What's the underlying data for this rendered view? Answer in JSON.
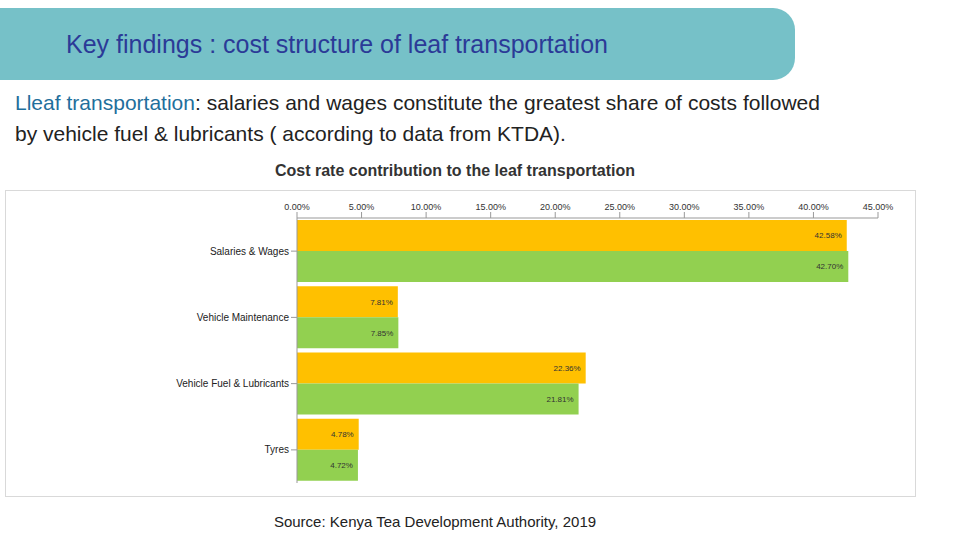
{
  "slide": {
    "title": "Key findings : cost structure of leaf transportation",
    "text": "Lleaf transportation: salaries and wages constitute the greatest share of costs followed by vehicle fuel & lubricants ( according to data from KTDA)."
  },
  "chart_data": {
    "type": "bar",
    "orientation": "horizontal",
    "title": "Cost rate contribution to the leaf transportation",
    "annotations": [
      "Source: Kenya Tea Development Authority, 2019"
    ],
    "categories": [
      "Salaries & Wages",
      "Vehicle Maintenance",
      "Vehicle Fuel & Lubricants",
      "Tyres"
    ],
    "series": [
      {
        "color": "#ffc000",
        "values": [
          42.58,
          7.81,
          22.36,
          4.78
        ],
        "value_labels": [
          "42.58%",
          "7.81%",
          "22.36%",
          "4.78%"
        ]
      },
      {
        "color": "#92d050",
        "values": [
          42.7,
          7.85,
          21.81,
          4.72
        ],
        "value_labels": [
          "42.70%",
          "7.85%",
          "21.81%",
          "4.72%"
        ]
      }
    ],
    "xlim": [
      0,
      45
    ],
    "xticks": [
      {
        "value": 0,
        "label": "0.00%"
      },
      {
        "value": 5,
        "label": "5.00%"
      },
      {
        "value": 10,
        "label": "10.00%"
      },
      {
        "value": 15,
        "label": "15.00%"
      },
      {
        "value": 20,
        "label": "20.00%"
      },
      {
        "value": 25,
        "label": "25.00%"
      },
      {
        "value": 30,
        "label": "30.00%"
      },
      {
        "value": 35,
        "label": "35.00%"
      },
      {
        "value": 40,
        "label": "40.00%"
      },
      {
        "value": 45,
        "label": "45.00%"
      }
    ],
    "grid": false,
    "data_labels": true
  }
}
